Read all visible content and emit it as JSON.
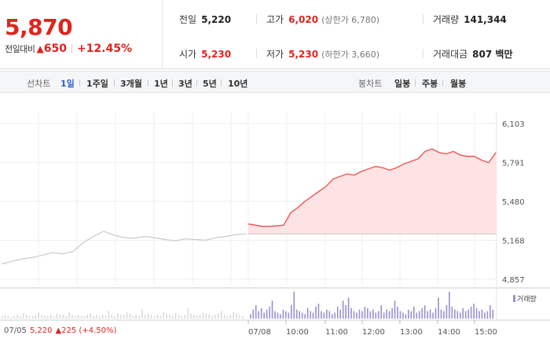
{
  "quote": {
    "price": "5,870",
    "change_label": "전일대비",
    "change_arrow": "▲",
    "change_value": "650",
    "change_pct": "+12.45%"
  },
  "stats": {
    "prev_close": {
      "label": "전일",
      "value": "5,220"
    },
    "high": {
      "label": "고가",
      "value": "6,020",
      "sub": "(상한가 6,780)"
    },
    "volume": {
      "label": "거래량",
      "value": "141,344"
    },
    "open": {
      "label": "시가",
      "value": "5,230"
    },
    "low": {
      "label": "저가",
      "value": "5,230",
      "sub": "(하한가 3,660)"
    },
    "amount": {
      "label": "거래대금",
      "value": "807 백만"
    }
  },
  "tabs": {
    "line_label": "선차트",
    "line_items": [
      "1일",
      "1주일",
      "3개월",
      "1년",
      "3년",
      "5년",
      "10년"
    ],
    "active_line": "1일",
    "candle_label": "봉차트",
    "candle_items": [
      "일봉",
      "주봉",
      "월봉"
    ]
  },
  "chart_data": {
    "type": "line",
    "y_ticks": [
      "6,103",
      "5,791",
      "5,480",
      "5,168",
      "4,857"
    ],
    "y_tick_values": [
      6103,
      5791,
      5480,
      5168,
      4857
    ],
    "ylim": [
      4857,
      6103
    ],
    "x_ticks": [
      "07/05",
      "07/08",
      "10:00",
      "11:00",
      "12:00",
      "13:00",
      "14:00",
      "15:00"
    ],
    "prev_close": 5220,
    "series": [
      {
        "values": [
          4980,
          5000,
          5020,
          5030,
          5050,
          5070,
          5060,
          5080,
          5150,
          5200,
          5240,
          5210,
          5190,
          5185,
          5200,
          5190,
          5175,
          5165,
          5180,
          5175,
          5170,
          5190,
          5200,
          5215,
          5220
        ]
      },
      {
        "values": [
          5300,
          5290,
          5280,
          5280,
          5285,
          5290,
          5390,
          5430,
          5480,
          5520,
          5560,
          5600,
          5660,
          5680,
          5700,
          5690,
          5720,
          5740,
          5760,
          5750,
          5730,
          5750,
          5780,
          5800,
          5820,
          5880,
          5900,
          5870,
          5860,
          5880,
          5850,
          5840,
          5840,
          5810,
          5790,
          5870
        ]
      }
    ],
    "volume_label": "거래량",
    "volume": [
      2,
      3,
      2,
      1,
      2,
      3,
      2,
      4,
      3,
      2,
      2,
      3,
      5,
      3,
      2,
      2,
      3,
      2,
      4,
      3,
      3,
      2,
      5,
      3,
      2,
      3,
      2,
      2,
      3,
      4,
      2,
      3,
      2,
      3,
      2,
      6,
      3,
      2,
      4,
      3,
      3,
      5,
      4,
      2,
      3,
      2,
      7,
      3,
      4,
      3,
      2,
      3,
      2,
      5,
      4,
      3,
      2,
      4,
      3,
      2,
      3,
      8,
      4,
      3,
      2,
      3,
      5,
      4,
      3,
      2,
      3,
      4,
      6,
      3,
      2,
      3,
      5,
      4,
      3,
      2
    ],
    "volume_main": [
      3,
      6,
      9,
      5,
      7,
      4,
      6,
      8,
      12,
      5,
      4,
      3,
      6,
      5,
      4,
      9,
      18,
      6,
      5,
      4,
      3,
      7,
      5,
      4,
      8,
      10,
      5,
      4,
      6,
      5,
      3,
      4,
      8,
      6,
      12,
      9,
      14,
      7,
      5,
      4,
      6,
      5,
      8,
      7,
      5,
      6,
      4,
      5,
      9,
      4,
      6,
      5,
      7,
      12,
      8,
      5,
      4,
      3,
      6,
      5,
      8,
      4,
      5,
      7,
      9,
      5,
      6,
      4,
      7,
      14,
      6,
      5,
      9,
      18,
      8,
      6,
      5,
      4,
      7,
      5,
      6,
      8,
      10,
      7,
      5,
      6,
      4,
      5,
      9,
      6
    ]
  },
  "bottom_info": {
    "date": "07/05",
    "price": "5,220",
    "change": "▲225 (+4.50%)"
  }
}
